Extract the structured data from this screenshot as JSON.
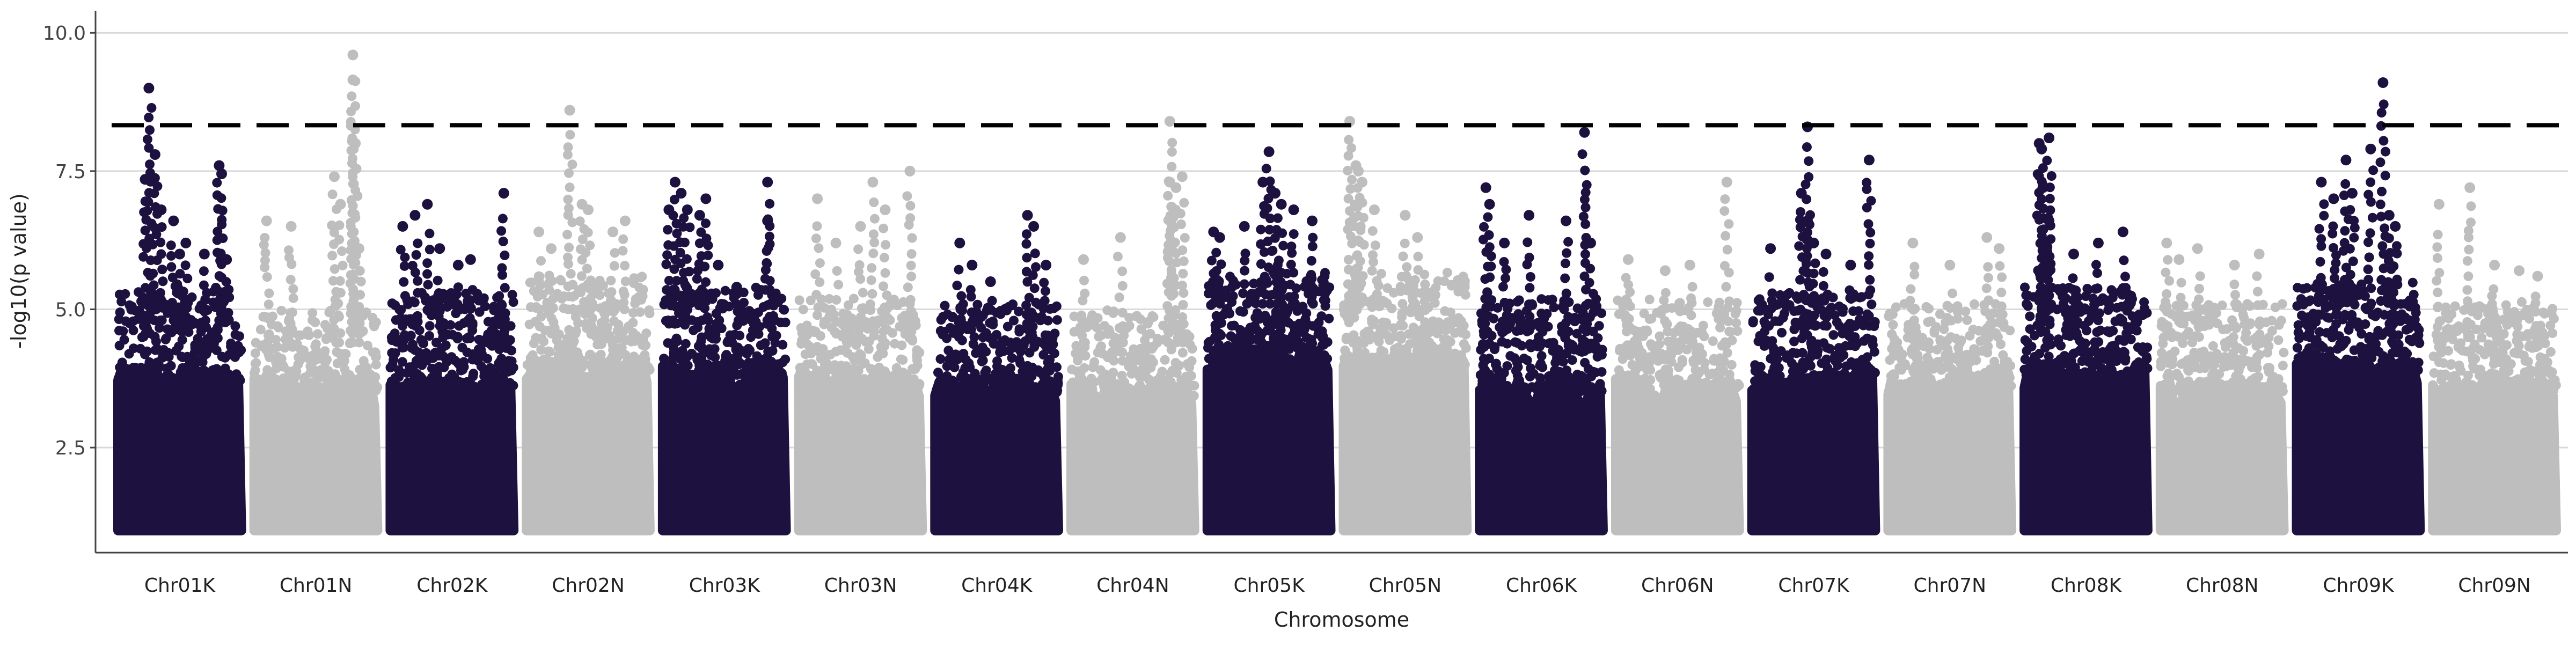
{
  "chart_data": {
    "type": "scatter",
    "title": "",
    "xlabel": "Chromosome",
    "ylabel": "-log10(p value)",
    "ylim": [
      0.6,
      10.4
    ],
    "y_ticks": [
      2.5,
      5.0,
      7.5,
      10.0
    ],
    "y_tick_labels": [
      "2.5",
      "5.0",
      "7.5",
      "10.0"
    ],
    "grid": "horizontal major lines",
    "legend": "none",
    "threshold": {
      "value": 8.33,
      "style": "dashed",
      "color": "#000000"
    },
    "colors": {
      "K": "#1d1140",
      "N": "#bebebe"
    },
    "point_floor": 1.0,
    "chromosomes": [
      {
        "name": "Chr01K",
        "color": "#1d1140",
        "dense_top": 3.7,
        "cloud_top": 5.0,
        "peaks": [
          [
            0.25,
            9.0
          ],
          [
            0.3,
            7.8
          ],
          [
            0.22,
            7.35
          ],
          [
            0.35,
            6.8
          ],
          [
            0.45,
            6.6
          ],
          [
            0.5,
            6.0
          ],
          [
            0.55,
            6.2
          ],
          [
            0.7,
            6.0
          ],
          [
            0.82,
            7.6
          ],
          [
            0.84,
            7.45
          ],
          [
            0.88,
            5.9
          ]
        ]
      },
      {
        "name": "Chr01N",
        "color": "#bebebe",
        "dense_top": 3.5,
        "cloud_top": 4.6,
        "peaks": [
          [
            0.1,
            6.6
          ],
          [
            0.3,
            6.5
          ],
          [
            0.65,
            7.4
          ],
          [
            0.7,
            6.9
          ],
          [
            0.8,
            9.6
          ],
          [
            0.8,
            9.15
          ],
          [
            0.82,
            8.0
          ],
          [
            0.85,
            6.1
          ]
        ]
      },
      {
        "name": "Chr02K",
        "color": "#1d1140",
        "dense_top": 3.6,
        "cloud_top": 4.9,
        "peaks": [
          [
            0.1,
            6.5
          ],
          [
            0.2,
            6.7
          ],
          [
            0.3,
            6.9
          ],
          [
            0.4,
            6.1
          ],
          [
            0.55,
            5.8
          ],
          [
            0.65,
            5.9
          ],
          [
            0.92,
            7.1
          ]
        ]
      },
      {
        "name": "Chr02N",
        "color": "#bebebe",
        "dense_top": 3.9,
        "cloud_top": 5.2,
        "peaks": [
          [
            0.1,
            6.4
          ],
          [
            0.2,
            6.1
          ],
          [
            0.35,
            8.6
          ],
          [
            0.45,
            6.9
          ],
          [
            0.5,
            6.8
          ],
          [
            0.7,
            6.4
          ],
          [
            0.8,
            6.6
          ]
        ]
      },
      {
        "name": "Chr03K",
        "color": "#1d1140",
        "dense_top": 3.8,
        "cloud_top": 5.0,
        "peaks": [
          [
            0.05,
            6.8
          ],
          [
            0.1,
            7.3
          ],
          [
            0.15,
            7.1
          ],
          [
            0.2,
            6.8
          ],
          [
            0.3,
            6.7
          ],
          [
            0.35,
            7.0
          ],
          [
            0.45,
            5.8
          ],
          [
            0.6,
            5.4
          ],
          [
            0.85,
            7.3
          ],
          [
            0.85,
            6.6
          ]
        ]
      },
      {
        "name": "Chr03N",
        "color": "#bebebe",
        "dense_top": 3.6,
        "cloud_top": 4.8,
        "peaks": [
          [
            0.15,
            7.0
          ],
          [
            0.3,
            6.2
          ],
          [
            0.5,
            6.5
          ],
          [
            0.6,
            7.3
          ],
          [
            0.7,
            6.8
          ],
          [
            0.9,
            7.5
          ]
        ]
      },
      {
        "name": "Chr04K",
        "color": "#1d1140",
        "dense_top": 3.5,
        "cloud_top": 4.7,
        "peaks": [
          [
            0.2,
            6.2
          ],
          [
            0.3,
            5.8
          ],
          [
            0.45,
            5.5
          ],
          [
            0.75,
            6.7
          ],
          [
            0.8,
            6.5
          ],
          [
            0.9,
            5.8
          ]
        ]
      },
      {
        "name": "Chr04N",
        "color": "#bebebe",
        "dense_top": 3.4,
        "cloud_top": 4.6,
        "peaks": [
          [
            0.1,
            5.9
          ],
          [
            0.4,
            6.3
          ],
          [
            0.8,
            8.4
          ],
          [
            0.8,
            7.3
          ],
          [
            0.85,
            7.2
          ],
          [
            0.9,
            7.4
          ]
        ]
      },
      {
        "name": "Chr05K",
        "color": "#1d1140",
        "dense_top": 4.1,
        "cloud_top": 5.3,
        "peaks": [
          [
            0.05,
            6.4
          ],
          [
            0.1,
            6.3
          ],
          [
            0.3,
            6.5
          ],
          [
            0.45,
            7.3
          ],
          [
            0.5,
            7.85
          ],
          [
            0.55,
            7.1
          ],
          [
            0.6,
            6.9
          ],
          [
            0.7,
            6.8
          ],
          [
            0.85,
            6.6
          ]
        ]
      },
      {
        "name": "Chr05N",
        "color": "#bebebe",
        "dense_top": 4.0,
        "cloud_top": 5.3,
        "peaks": [
          [
            0.05,
            8.4
          ],
          [
            0.1,
            7.6
          ],
          [
            0.12,
            7.5
          ],
          [
            0.15,
            7.3
          ],
          [
            0.25,
            6.8
          ],
          [
            0.5,
            6.7
          ],
          [
            0.6,
            6.3
          ]
        ]
      },
      {
        "name": "Chr06K",
        "color": "#1d1140",
        "dense_top": 3.5,
        "cloud_top": 4.8,
        "peaks": [
          [
            0.05,
            7.2
          ],
          [
            0.08,
            6.9
          ],
          [
            0.2,
            6.2
          ],
          [
            0.4,
            6.7
          ],
          [
            0.7,
            6.6
          ],
          [
            0.85,
            8.2
          ],
          [
            0.9,
            6.2
          ]
        ]
      },
      {
        "name": "Chr06N",
        "color": "#bebebe",
        "dense_top": 3.5,
        "cloud_top": 4.8,
        "peaks": [
          [
            0.1,
            5.9
          ],
          [
            0.4,
            5.7
          ],
          [
            0.6,
            5.8
          ],
          [
            0.9,
            7.3
          ]
        ]
      },
      {
        "name": "Chr07K",
        "color": "#1d1140",
        "dense_top": 3.6,
        "cloud_top": 4.9,
        "peaks": [
          [
            0.15,
            6.1
          ],
          [
            0.4,
            7.1
          ],
          [
            0.45,
            6.6
          ],
          [
            0.5,
            6.2
          ],
          [
            0.6,
            6.0
          ],
          [
            0.8,
            5.8
          ],
          [
            0.95,
            7.7
          ],
          [
            0.45,
            8.3
          ]
        ]
      },
      {
        "name": "Chr07N",
        "color": "#bebebe",
        "dense_top": 3.6,
        "cloud_top": 4.7,
        "peaks": [
          [
            0.2,
            6.2
          ],
          [
            0.5,
            5.8
          ],
          [
            0.8,
            6.3
          ],
          [
            0.9,
            6.1
          ]
        ]
      },
      {
        "name": "Chr08K",
        "color": "#1d1140",
        "dense_top": 3.8,
        "cloud_top": 5.0,
        "peaks": [
          [
            0.12,
            8.0
          ],
          [
            0.14,
            7.9
          ],
          [
            0.2,
            8.1
          ],
          [
            0.15,
            7.2
          ],
          [
            0.2,
            6.6
          ],
          [
            0.4,
            6.0
          ],
          [
            0.6,
            6.2
          ],
          [
            0.8,
            6.4
          ]
        ]
      },
      {
        "name": "Chr08N",
        "color": "#bebebe",
        "dense_top": 3.5,
        "cloud_top": 4.7,
        "peaks": [
          [
            0.05,
            6.2
          ],
          [
            0.15,
            5.9
          ],
          [
            0.3,
            6.1
          ],
          [
            0.6,
            5.8
          ],
          [
            0.8,
            6.0
          ]
        ]
      },
      {
        "name": "Chr09K",
        "color": "#1d1140",
        "dense_top": 3.9,
        "cloud_top": 5.1,
        "peaks": [
          [
            0.2,
            7.3
          ],
          [
            0.3,
            7.0
          ],
          [
            0.4,
            7.7
          ],
          [
            0.45,
            7.1
          ],
          [
            0.6,
            7.9
          ],
          [
            0.7,
            9.1
          ],
          [
            0.75,
            6.7
          ],
          [
            0.8,
            6.5
          ]
        ]
      },
      {
        "name": "Chr09N",
        "color": "#bebebe",
        "dense_top": 3.5,
        "cloud_top": 4.7,
        "peaks": [
          [
            0.05,
            6.9
          ],
          [
            0.3,
            7.2
          ],
          [
            0.5,
            5.8
          ],
          [
            0.7,
            5.7
          ],
          [
            0.85,
            5.6
          ]
        ]
      }
    ]
  }
}
